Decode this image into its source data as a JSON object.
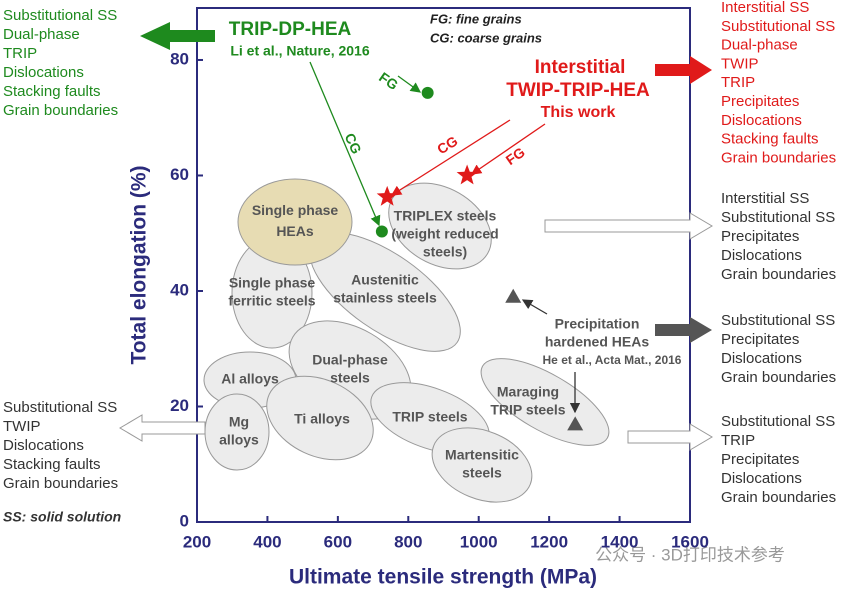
{
  "chart_data": {
    "type": "scatter",
    "xlabel": "Ultimate tensile strength (MPa)",
    "ylabel": "Total elongation (%)",
    "xlim": [
      200,
      1600
    ],
    "ylim": [
      0,
      89
    ],
    "xticks": [
      200,
      400,
      600,
      800,
      1000,
      1200,
      1400,
      1600
    ],
    "yticks": [
      0,
      20,
      40,
      60,
      80
    ],
    "series": [
      {
        "marker": "circle",
        "color": "#1e8a1e",
        "x": [
          855,
          725
        ],
        "values": [
          74.3,
          50.3
        ]
      },
      {
        "marker": "star",
        "color": "#e01a1a",
        "x": [
          740,
          967
        ],
        "values": [
          56.3,
          60
        ]
      },
      {
        "marker": "triangle",
        "color": "#555555",
        "x": [
          1098,
          1274
        ],
        "values": [
          39,
          16.9
        ]
      }
    ],
    "regions": [
      {
        "label": [
          "Single phase",
          "HEAs"
        ]
      },
      {
        "label": [
          "TRIPLEX steels",
          "(weight reduced",
          "steels)"
        ]
      },
      {
        "label": [
          "Single phase",
          "ferritic steels"
        ]
      },
      {
        "label": [
          "Austenitic",
          "stainless steels"
        ]
      },
      {
        "label": [
          "Al alloys"
        ]
      },
      {
        "label": [
          "Dual-phase",
          "steels"
        ]
      },
      {
        "label": [
          "Ti alloys"
        ]
      },
      {
        "label": [
          "Mg",
          "alloys"
        ]
      },
      {
        "label": [
          "TRIP steels"
        ]
      },
      {
        "label": [
          "Martensitic",
          "steels"
        ]
      },
      {
        "label": [
          "Maraging",
          "TRIP steels"
        ]
      }
    ],
    "annotations": {
      "trip_dp_title": "TRIP-DP-HEA",
      "trip_dp_ref": "Li et al., Nature, 2016",
      "fg_note": "FG: fine grains",
      "cg_note": "CG: coarse grains",
      "this_title_1": "Interstitial",
      "this_title_2": "TWIP-TRIP-HEA",
      "this_work": "This work",
      "green_fg": "FG",
      "green_cg": "CG",
      "red_cg": "CG",
      "red_fg": "FG",
      "precip_1": "Precipitation",
      "precip_2": "hardened HEAs",
      "precip_ref": "He et al., Acta Mat., 2016",
      "ss_note": "SS: solid solution"
    },
    "side_lists": {
      "green_left": [
        "Substitutional SS",
        "Dual-phase",
        "TRIP",
        "Dislocations",
        "Stacking faults",
        "Grain boundaries"
      ],
      "red_right": [
        "Interstitial SS",
        "Substitutional SS",
        "Dual-phase",
        "TWIP",
        "TRIP",
        "Precipitates",
        "Dislocations",
        "Stacking faults",
        "Grain boundaries"
      ],
      "triplex_right": [
        "Interstitial SS",
        "Substitutional SS",
        "Precipitates",
        "Dislocations",
        "Grain boundaries"
      ],
      "precip_right": [
        "Substitutional SS",
        "Precipitates",
        "Dislocations",
        "Grain boundaries"
      ],
      "maraging_right": [
        "Substitutional SS",
        "TRIP",
        "Precipitates",
        "Dislocations",
        "Grain boundaries"
      ],
      "light_left": [
        "Substitutional SS",
        "TWIP",
        "Dislocations",
        "Stacking faults",
        "Grain boundaries"
      ]
    },
    "watermark": "公众号 · 3D打印技术参考"
  }
}
